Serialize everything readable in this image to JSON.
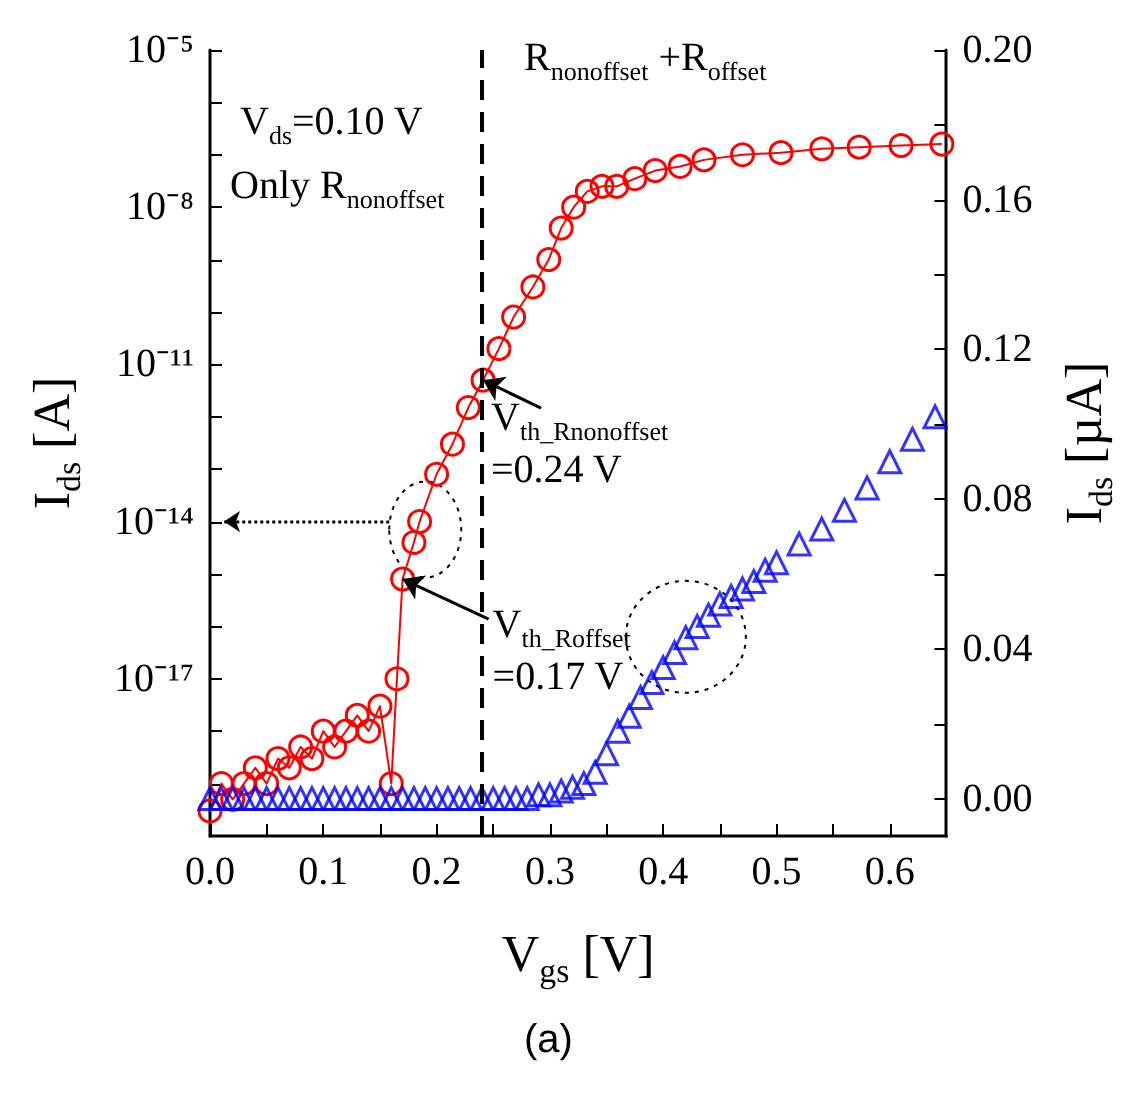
{
  "chart_data": {
    "type": "line",
    "xlabel": "V$_{gs}$ [V]",
    "ylabel": "I$_{ds}$ [A]",
    "y2label": "I$_{ds}$ [µA]",
    "xlim": [
      0,
      0.65
    ],
    "xticks": [
      {
        "value": 0,
        "label": "0.0"
      },
      {
        "value": 0.05,
        "label": null
      },
      {
        "value": 0.1,
        "label": "0.1"
      },
      {
        "value": 0.15,
        "label": null
      },
      {
        "value": 0.2,
        "label": "0.2"
      },
      {
        "value": 0.25,
        "label": null
      },
      {
        "value": 0.3,
        "label": "0.3"
      },
      {
        "value": 0.35,
        "label": null
      },
      {
        "value": 0.4,
        "label": "0.4"
      },
      {
        "value": 0.45,
        "label": null
      },
      {
        "value": 0.5,
        "label": "0.5"
      },
      {
        "value": 0.55,
        "label": null
      },
      {
        "value": 0.6,
        "label": "0.6"
      }
    ],
    "ylim": [
      1e-20,
      1e-05
    ],
    "yticks": [
      {
        "value": 1e-05,
        "label": "10⁻⁵"
      },
      {
        "value": 1e-06,
        "label": null
      },
      {
        "value": 1e-07,
        "label": null
      },
      {
        "value": 1e-08,
        "label": "10⁻⁸"
      },
      {
        "value": 1e-09,
        "label": null
      },
      {
        "value": 1e-10,
        "label": null
      },
      {
        "value": 1e-11,
        "label": "10⁻¹¹"
      },
      {
        "value": 1e-12,
        "label": null
      },
      {
        "value": 1e-13,
        "label": null
      },
      {
        "value": 1e-14,
        "label": "10⁻¹⁴"
      },
      {
        "value": 1e-15,
        "label": null
      },
      {
        "value": 1e-16,
        "label": null
      },
      {
        "value": 1e-17,
        "label": "10⁻¹⁷"
      },
      {
        "value": 1e-18,
        "label": null
      },
      {
        "value": 1e-19,
        "label": null
      }
    ],
    "y2lim": [
      -0.01,
      0.2
    ],
    "y2ticks": [
      {
        "value": 0,
        "label": "0.00"
      },
      {
        "value": 0.02,
        "label": null
      },
      {
        "value": 0.04,
        "label": "0.04"
      },
      {
        "value": 0.06,
        "label": null
      },
      {
        "value": 0.08,
        "label": "0.08"
      },
      {
        "value": 0.1,
        "label": null
      },
      {
        "value": 0.12,
        "label": "0.12"
      },
      {
        "value": 0.14,
        "label": null
      },
      {
        "value": 0.16,
        "label": "0.16"
      },
      {
        "value": 0.18,
        "label": null
      },
      {
        "value": 0.2,
        "label": "0.20"
      }
    ],
    "log": "y",
    "grid": false,
    "series": [
      {
        "type": "line",
        "color": "#ff0000",
        "marker": "circle",
        "x": [
          0,
          0.01,
          0.02,
          0.03,
          0.04,
          0.05,
          0.06,
          0.07,
          0.08,
          0.09,
          0.1,
          0.11,
          0.12,
          0.13,
          0.14,
          0.15,
          0.16,
          0.165,
          0.17,
          0.18,
          0.185,
          0.2,
          0.214,
          0.228,
          0.241,
          0.255,
          0.268,
          0.285,
          0.299,
          0.31,
          0.321,
          0.333,
          0.346,
          0.359,
          0.375,
          0.393,
          0.415,
          0.436,
          0.47,
          0.504,
          0.54,
          0.573,
          0.61,
          0.646
        ],
        "values": [
          3e-20,
          1e-19,
          5e-20,
          1e-19,
          2e-19,
          1e-19,
          3e-19,
          2e-19,
          5e-19,
          3e-19,
          1e-18,
          5e-19,
          1e-18,
          2e-18,
          1e-18,
          3e-18,
          1e-19,
          1e-17,
          8e-16,
          4e-15,
          1e-14,
          8e-14,
          3e-13,
          1.5e-12,
          5e-12,
          2e-11,
          8e-11,
          3e-10,
          1e-09,
          4e-09,
          1e-08,
          2e-08,
          2.5e-08,
          2.5e-08,
          3.5e-08,
          5e-08,
          6e-08,
          8e-08,
          1e-07,
          1.1e-07,
          1.3e-07,
          1.4e-07,
          1.5e-07,
          1.6e-07
        ]
      },
      {
        "type": "scatter",
        "axis": "y2",
        "color": "#0000ff",
        "marker": "triangle",
        "x": [
          0,
          0.01,
          0.02,
          0.03,
          0.04,
          0.05,
          0.06,
          0.07,
          0.08,
          0.09,
          0.1,
          0.11,
          0.12,
          0.13,
          0.14,
          0.15,
          0.16,
          0.17,
          0.18,
          0.19,
          0.2,
          0.21,
          0.22,
          0.23,
          0.24,
          0.25,
          0.26,
          0.27,
          0.28,
          0.29,
          0.3,
          0.31,
          0.32,
          0.33,
          0.34,
          0.35,
          0.36,
          0.37,
          0.38,
          0.39,
          0.4,
          0.41,
          0.42,
          0.43,
          0.44,
          0.45,
          0.46,
          0.47,
          0.48,
          0.49,
          0.5,
          0.52,
          0.54,
          0.56,
          0.58,
          0.6,
          0.62,
          0.64
        ],
        "values": [
          0,
          0,
          0,
          0,
          0,
          0,
          0,
          0,
          0,
          0,
          0,
          0,
          0,
          0,
          0,
          0,
          0,
          0,
          0,
          0,
          0,
          0,
          0,
          0,
          0,
          0,
          0,
          0,
          0,
          0.001,
          0.001,
          0.002,
          0.003,
          0.004,
          0.007,
          0.012,
          0.018,
          0.022,
          0.027,
          0.031,
          0.035,
          0.039,
          0.043,
          0.046,
          0.049,
          0.052,
          0.054,
          0.056,
          0.058,
          0.061,
          0.063,
          0.068,
          0.072,
          0.077,
          0.083,
          0.09,
          0.096,
          0.102
        ]
      }
    ],
    "ref_lines": [
      {
        "axis": "x",
        "value": 0.24,
        "color": "#000000",
        "line_style": "dashed"
      }
    ],
    "annotations": [
      "V$_{ds}$=0.10 V",
      "Only R$_{nonoffset}$",
      "R$_{nonoffset}$ +R$_{offset}$",
      {
        "text": "V$_{th_Rnonoffset}$\n=0.24 V",
        "x": 0.241,
        "y": 5e-12
      },
      {
        "text": "V$_{th_Roffset}$\n=0.17 V",
        "x": 0.17,
        "y": 8e-16
      },
      "(a)"
    ]
  }
}
